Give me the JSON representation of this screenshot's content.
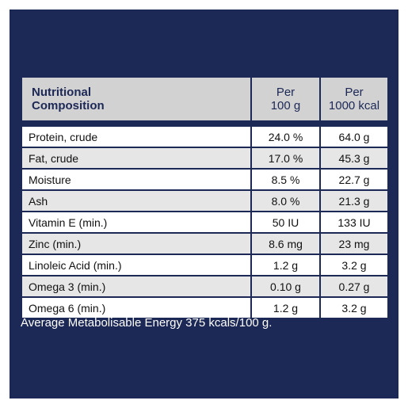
{
  "header": {
    "name_line1": "Nutritional",
    "name_line2": "Composition",
    "col1_line1": "Per",
    "col1_line2": "100 g",
    "col2_line1": "Per",
    "col2_line2": "1000 kcal"
  },
  "rows": [
    {
      "label": "Protein, crude",
      "per100g": "24.0 %",
      "per1000kcal": "64.0 g"
    },
    {
      "label": "Fat, crude",
      "per100g": "17.0 %",
      "per1000kcal": "45.3 g"
    },
    {
      "label": "Moisture",
      "per100g": "8.5 %",
      "per1000kcal": "22.7 g"
    },
    {
      "label": "Ash",
      "per100g": "8.0 %",
      "per1000kcal": "21.3 g"
    },
    {
      "label": "Vitamin E (min.)",
      "per100g": "50 IU",
      "per1000kcal": "133 IU"
    },
    {
      "label": "Zinc (min.)",
      "per100g": "8.6 mg",
      "per1000kcal": "23 mg"
    },
    {
      "label": "Linoleic Acid (min.)",
      "per100g": "1.2 g",
      "per1000kcal": "3.2 g"
    },
    {
      "label": "Omega 3 (min.)",
      "per100g": "0.10 g",
      "per1000kcal": "0.27 g"
    },
    {
      "label": "Omega 6 (min.)",
      "per100g": "1.2 g",
      "per1000kcal": "3.2 g"
    }
  ],
  "footnote": "Average Metabolisable Energy 375 kcals/100 g.",
  "colors": {
    "background_navy": "#1c2856",
    "header_gray": "#d2d2d2",
    "row_alt_gray": "#e6e6e6"
  }
}
